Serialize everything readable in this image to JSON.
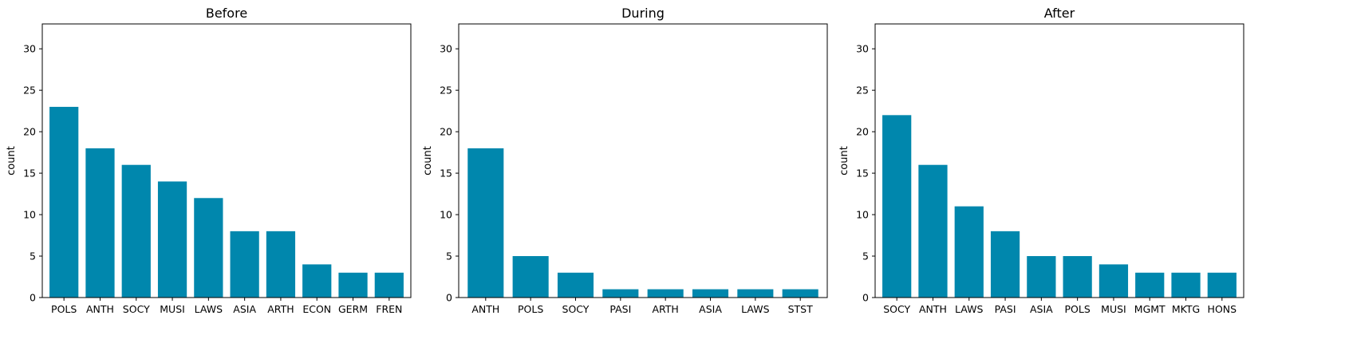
{
  "chart_data": [
    {
      "type": "bar",
      "title": "Before",
      "xlabel": "",
      "ylabel": "count",
      "ylim": [
        0,
        33
      ],
      "yticks": [
        0,
        5,
        10,
        15,
        20,
        25,
        30
      ],
      "grid": false,
      "bar_color": "#0087ad",
      "categories": [
        "POLS",
        "ANTH",
        "SOCY",
        "MUSI",
        "LAWS",
        "ASIA",
        "ARTH",
        "ECON",
        "GERM",
        "FREN"
      ],
      "values": [
        23,
        18,
        16,
        14,
        12,
        8,
        8,
        4,
        3,
        3
      ]
    },
    {
      "type": "bar",
      "title": "During",
      "xlabel": "",
      "ylabel": "count",
      "ylim": [
        0,
        33
      ],
      "yticks": [
        0,
        5,
        10,
        15,
        20,
        25,
        30
      ],
      "grid": false,
      "bar_color": "#0087ad",
      "categories": [
        "ANTH",
        "POLS",
        "SOCY",
        "PASI",
        "ARTH",
        "ASIA",
        "LAWS",
        "STST"
      ],
      "values": [
        18,
        5,
        3,
        1,
        1,
        1,
        1,
        1
      ]
    },
    {
      "type": "bar",
      "title": "After",
      "xlabel": "",
      "ylabel": "count",
      "ylim": [
        0,
        33
      ],
      "yticks": [
        0,
        5,
        10,
        15,
        20,
        25,
        30
      ],
      "grid": false,
      "bar_color": "#0087ad",
      "categories": [
        "SOCY",
        "ANTH",
        "LAWS",
        "PASI",
        "ASIA",
        "POLS",
        "MUSI",
        "MGMT",
        "MKTG",
        "HONS"
      ],
      "values": [
        22,
        16,
        11,
        8,
        5,
        5,
        4,
        3,
        3,
        3
      ]
    }
  ]
}
